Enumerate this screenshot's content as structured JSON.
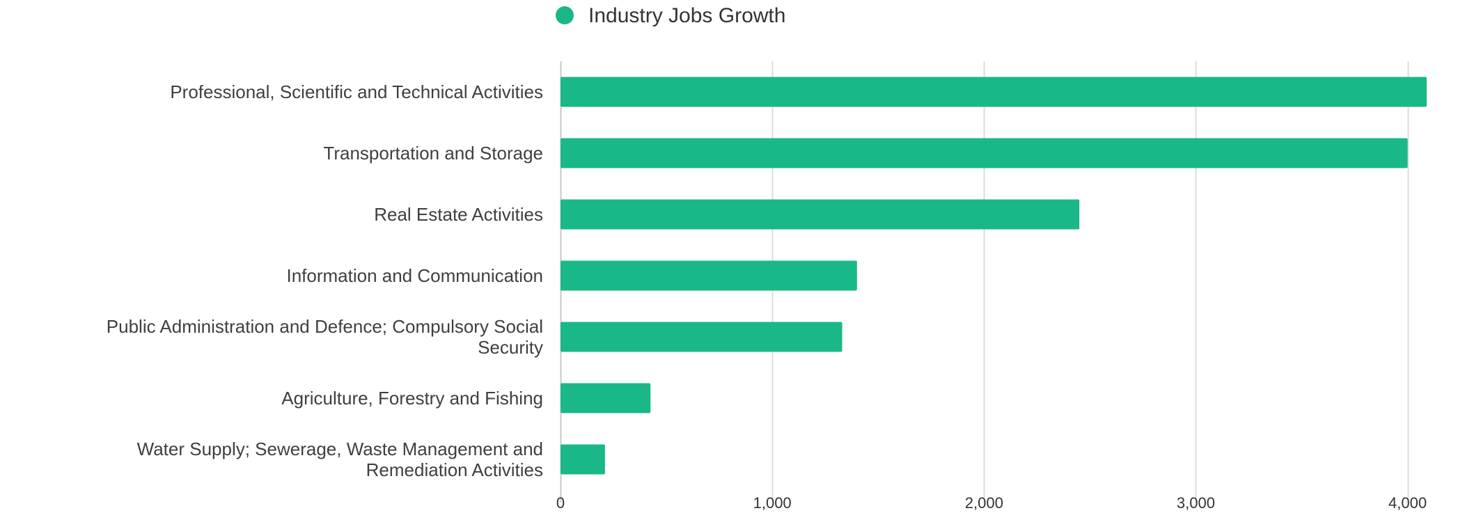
{
  "colors": {
    "bar": "#1ab889",
    "grid": "#dcdcdc",
    "text": "#3f3f3f"
  },
  "chart_data": {
    "type": "bar",
    "orientation": "horizontal",
    "legend": {
      "position": "top-center",
      "entries": [
        "Industry Jobs Growth"
      ]
    },
    "categories": [
      [
        "Professional, Scientific and Technical Activities"
      ],
      [
        "Transportation and Storage"
      ],
      [
        "Real Estate Activities"
      ],
      [
        "Information and Communication"
      ],
      [
        "Public Administration and Defence; Compulsory Social",
        "Security"
      ],
      [
        "Agriculture, Forestry and Fishing"
      ],
      [
        "Water Supply; Sewerage, Waste Management and",
        "Remediation Activities"
      ]
    ],
    "series": [
      {
        "name": "Industry Jobs Growth",
        "values": [
          4090,
          4000,
          2450,
          1400,
          1330,
          425,
          210
        ]
      }
    ],
    "x_ticks": [
      "0",
      "1,000",
      "2,000",
      "3,000",
      "4,000"
    ],
    "xlim": [
      0,
      4100
    ],
    "grid": true,
    "title": "",
    "xlabel": "",
    "ylabel": ""
  }
}
